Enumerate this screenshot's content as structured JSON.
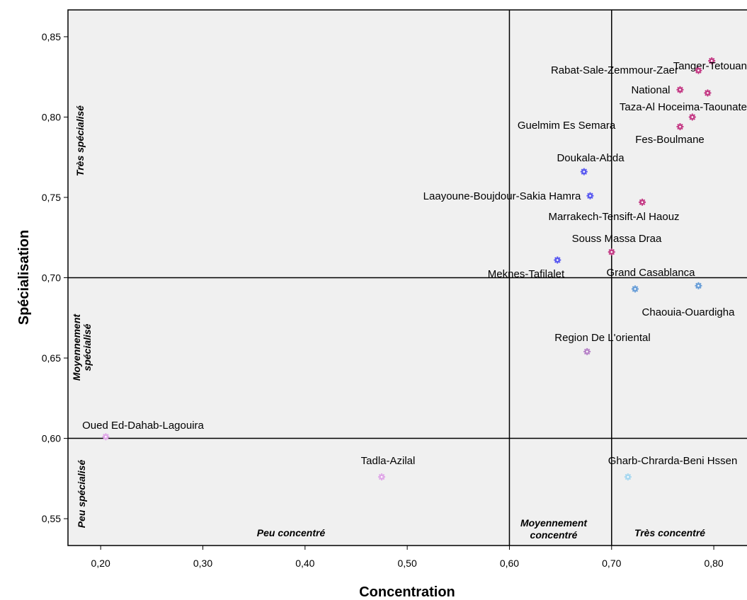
{
  "chart_data": {
    "type": "scatter",
    "xlabel": "Concentration",
    "ylabel": "Spécialisation",
    "xlim": [
      0.168,
      0.8325
    ],
    "ylim": [
      0.5333,
      0.8667
    ],
    "x_ticks": [
      "0,20",
      "0,30",
      "0,40",
      "0,50",
      "0,60",
      "0,70",
      "0,80"
    ],
    "y_ticks": [
      "0,55",
      "0,60",
      "0,65",
      "0,70",
      "0,75",
      "0,80",
      "0,85"
    ],
    "reference_lines": {
      "x": [
        0.6,
        0.7
      ],
      "y": [
        0.6,
        0.7
      ]
    },
    "zone_labels": {
      "x_low": "Peu concentré",
      "x_mid": "Moyennement concentré",
      "x_high": "Très concentré",
      "y_low": "Peu spécialisé",
      "y_mid": "Moyennement spécialisé",
      "y_high": "Très spécialisé"
    },
    "points": [
      {
        "label": "Tanger-Tetouan",
        "x": 0.798,
        "y": 0.835,
        "color": "#c43c86"
      },
      {
        "label": "Rabat-Sale-Zemmour-Zaer",
        "x": 0.785,
        "y": 0.829,
        "color": "#c43c86"
      },
      {
        "label": "National",
        "x": 0.767,
        "y": 0.817,
        "color": "#c43c86"
      },
      {
        "label": "Taza-Al Hoceima-Taounate",
        "x": 0.794,
        "y": 0.815,
        "color": "#c43c86"
      },
      {
        "label": "Fes-Boulmane",
        "x": 0.779,
        "y": 0.8,
        "color": "#c43c86"
      },
      {
        "label": "Guelmim Es Semara",
        "x": 0.767,
        "y": 0.794,
        "color": "#c43c86"
      },
      {
        "label": "Doukala-Abda",
        "x": 0.673,
        "y": 0.766,
        "color": "#5a5af0"
      },
      {
        "label": "Laayoune-Boujdour-Sakia Hamra",
        "x": 0.679,
        "y": 0.751,
        "color": "#5a5af0"
      },
      {
        "label": "Marrakech-Tensift-Al Haouz",
        "x": 0.73,
        "y": 0.747,
        "color": "#c43c86"
      },
      {
        "label": "Souss Massa Draa",
        "x": 0.7,
        "y": 0.716,
        "color": "#c43c86"
      },
      {
        "label": "Meknes-Tafilalet",
        "x": 0.647,
        "y": 0.711,
        "color": "#5a5af0"
      },
      {
        "label": "Grand Casablanca",
        "x": 0.723,
        "y": 0.693,
        "color": "#6a9fd8"
      },
      {
        "label": "Chaouia-Ouardigha",
        "x": 0.785,
        "y": 0.695,
        "color": "#6a9fd8"
      },
      {
        "label": "Region De L'oriental",
        "x": 0.676,
        "y": 0.654,
        "color": "#b784c8"
      },
      {
        "label": "Oued Ed-Dahab-Lagouira",
        "x": 0.205,
        "y": 0.601,
        "color": "#e0a8e8"
      },
      {
        "label": "Tadla-Azilal",
        "x": 0.475,
        "y": 0.576,
        "color": "#e0a8e8"
      },
      {
        "label": "Gharb-Chrarda-Beni Hssen",
        "x": 0.716,
        "y": 0.576,
        "color": "#a8d8f0"
      }
    ]
  }
}
